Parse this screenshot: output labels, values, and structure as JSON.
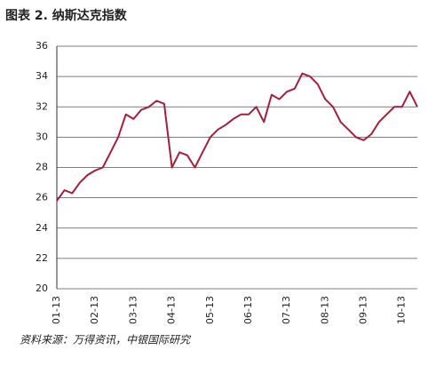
{
  "chart_data": {
    "type": "line",
    "title": "图表 2. 纳斯达克指数",
    "source": "资料来源：万得资讯，中银国际研究",
    "categories": [
      "01-13",
      null,
      null,
      null,
      null,
      "02-13",
      null,
      null,
      null,
      null,
      "03-13",
      null,
      null,
      null,
      null,
      "04-13",
      null,
      null,
      null,
      null,
      "05-13",
      null,
      null,
      null,
      null,
      "06-13",
      null,
      null,
      null,
      null,
      "07-13",
      null,
      null,
      null,
      null,
      "08-13",
      null,
      null,
      null,
      null,
      "09-13",
      null,
      null,
      null,
      null,
      "10-13",
      null,
      null
    ],
    "values": [
      25.8,
      26.5,
      26.3,
      27.0,
      27.5,
      27.8,
      28.0,
      29.0,
      30.0,
      31.5,
      31.2,
      31.8,
      32.0,
      32.4,
      32.2,
      28.0,
      29.0,
      28.8,
      28.0,
      29.0,
      30.0,
      30.5,
      30.8,
      31.2,
      31.5,
      31.5,
      32.0,
      31.0,
      32.8,
      32.5,
      33.0,
      33.2,
      34.2,
      34.0,
      33.5,
      32.5,
      32.0,
      31.0,
      30.5,
      30.0,
      29.8,
      30.2,
      31.0,
      31.5,
      32.0,
      32.0,
      33.0,
      32.0
    ],
    "color": "#a31f3a",
    "ylim": [
      20,
      36
    ],
    "yticks": [
      20,
      22,
      24,
      26,
      28,
      30,
      32,
      34,
      36
    ],
    "grid": true
  }
}
